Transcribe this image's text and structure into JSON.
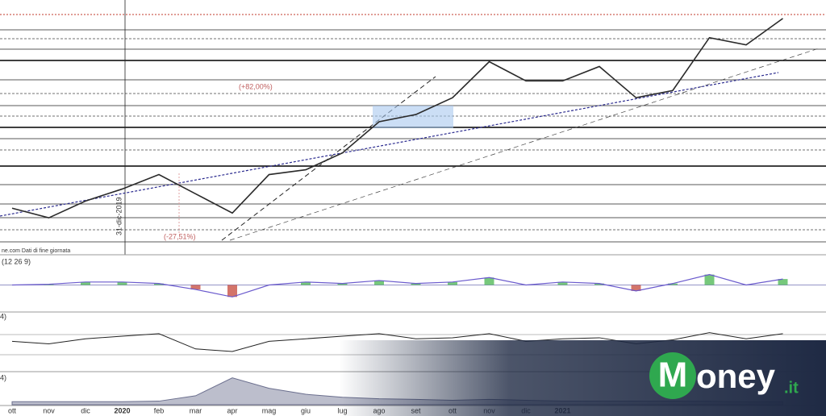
{
  "chart_data": [
    {
      "type": "line",
      "color": "#2a2a2a",
      "categories": [
        "ott",
        "nov",
        "dic",
        "2020",
        "feb",
        "mar",
        "apr",
        "mag",
        "giu",
        "lug",
        "ago",
        "set",
        "ott",
        "nov",
        "dic",
        "2021",
        null,
        null,
        null,
        null,
        null,
        null
      ],
      "values": [
        14,
        10,
        17,
        22,
        28,
        20,
        12,
        28,
        30,
        37,
        50,
        53,
        60,
        75,
        67,
        67,
        73,
        60,
        63,
        85,
        82,
        93
      ],
      "ylim": [
        0,
        100
      ],
      "annotations": [
        "(+82,00%)",
        "(-27,51%)",
        "31-dic-2019",
        "ne.com  Dati di fine giornata"
      ]
    },
    {
      "type": "macd",
      "title": "(12 26 9)",
      "color": "#6a5acd",
      "values": [
        0,
        0.05,
        0.2,
        0.2,
        0.1,
        -0.3,
        -0.8,
        0,
        0.2,
        0.1,
        0.3,
        0.1,
        0.2,
        0.5,
        0,
        0.2,
        0.1,
        -0.4,
        0.1,
        0.7,
        0,
        0.4
      ],
      "ylim": [
        -1,
        1
      ]
    },
    {
      "type": "line",
      "title": "4)",
      "color": "#222",
      "values": [
        55,
        50,
        60,
        65,
        70,
        40,
        35,
        55,
        60,
        65,
        70,
        60,
        62,
        70,
        55,
        60,
        62,
        50,
        58,
        72,
        60,
        70
      ],
      "ylim": [
        0,
        100
      ]
    },
    {
      "type": "area",
      "title": "4)",
      "color": "#6b6f8e",
      "values": [
        10,
        10,
        10,
        10,
        12,
        30,
        90,
        55,
        35,
        25,
        20,
        18,
        15,
        18,
        15,
        12,
        12,
        12,
        12,
        12,
        10,
        10
      ],
      "ylim": [
        0,
        100
      ]
    }
  ],
  "brand": {
    "initial": "M",
    "name": "oney",
    "suffix": ".it"
  }
}
